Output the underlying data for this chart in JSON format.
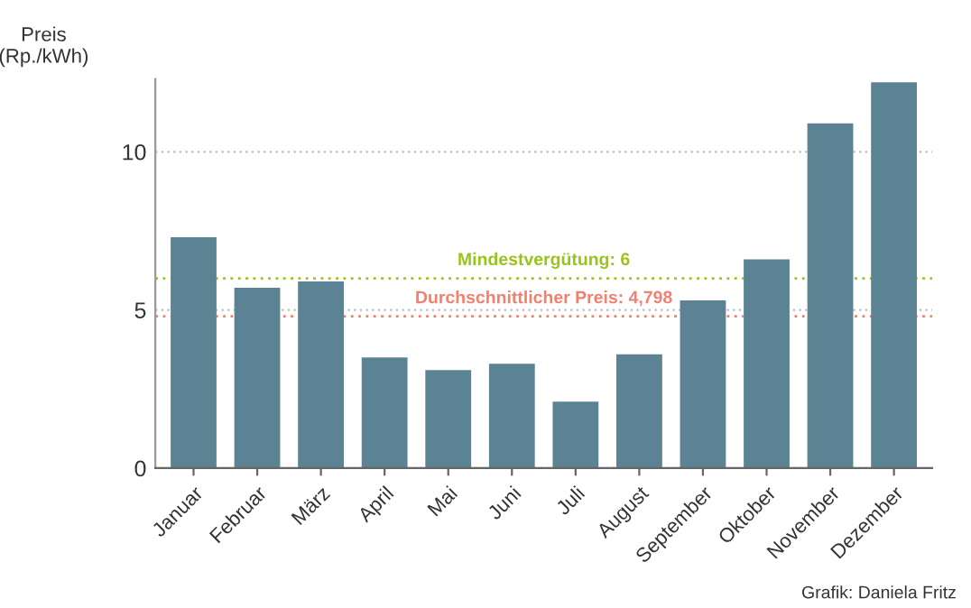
{
  "chart_data": {
    "type": "bar",
    "ylabel": "Preis\n(Rp./kWh)",
    "categories": [
      "Januar",
      "Februar",
      "März",
      "April",
      "Mai",
      "Juni",
      "Juli",
      "August",
      "September",
      "Oktober",
      "November",
      "Dezember"
    ],
    "values": [
      7.3,
      5.7,
      5.9,
      3.5,
      3.1,
      3.3,
      2.1,
      3.6,
      5.3,
      6.6,
      10.9,
      12.2
    ],
    "color": "#5b8394",
    "ylim": [
      0,
      12.3
    ],
    "yticks": [
      0,
      5,
      10
    ],
    "grid": "y",
    "ref_lines": [
      {
        "axis": "y",
        "value": 6,
        "label": "Mindestvergütung: 6",
        "color": "#9ac31c",
        "line_style": "dotted"
      },
      {
        "axis": "y",
        "value": 4.798,
        "label": "Durchschnittlicher Preis: 4,798",
        "color": "#f08070",
        "line_style": "dotted"
      }
    ],
    "annotations": [
      "Grafik: Daniela Fritz"
    ]
  }
}
